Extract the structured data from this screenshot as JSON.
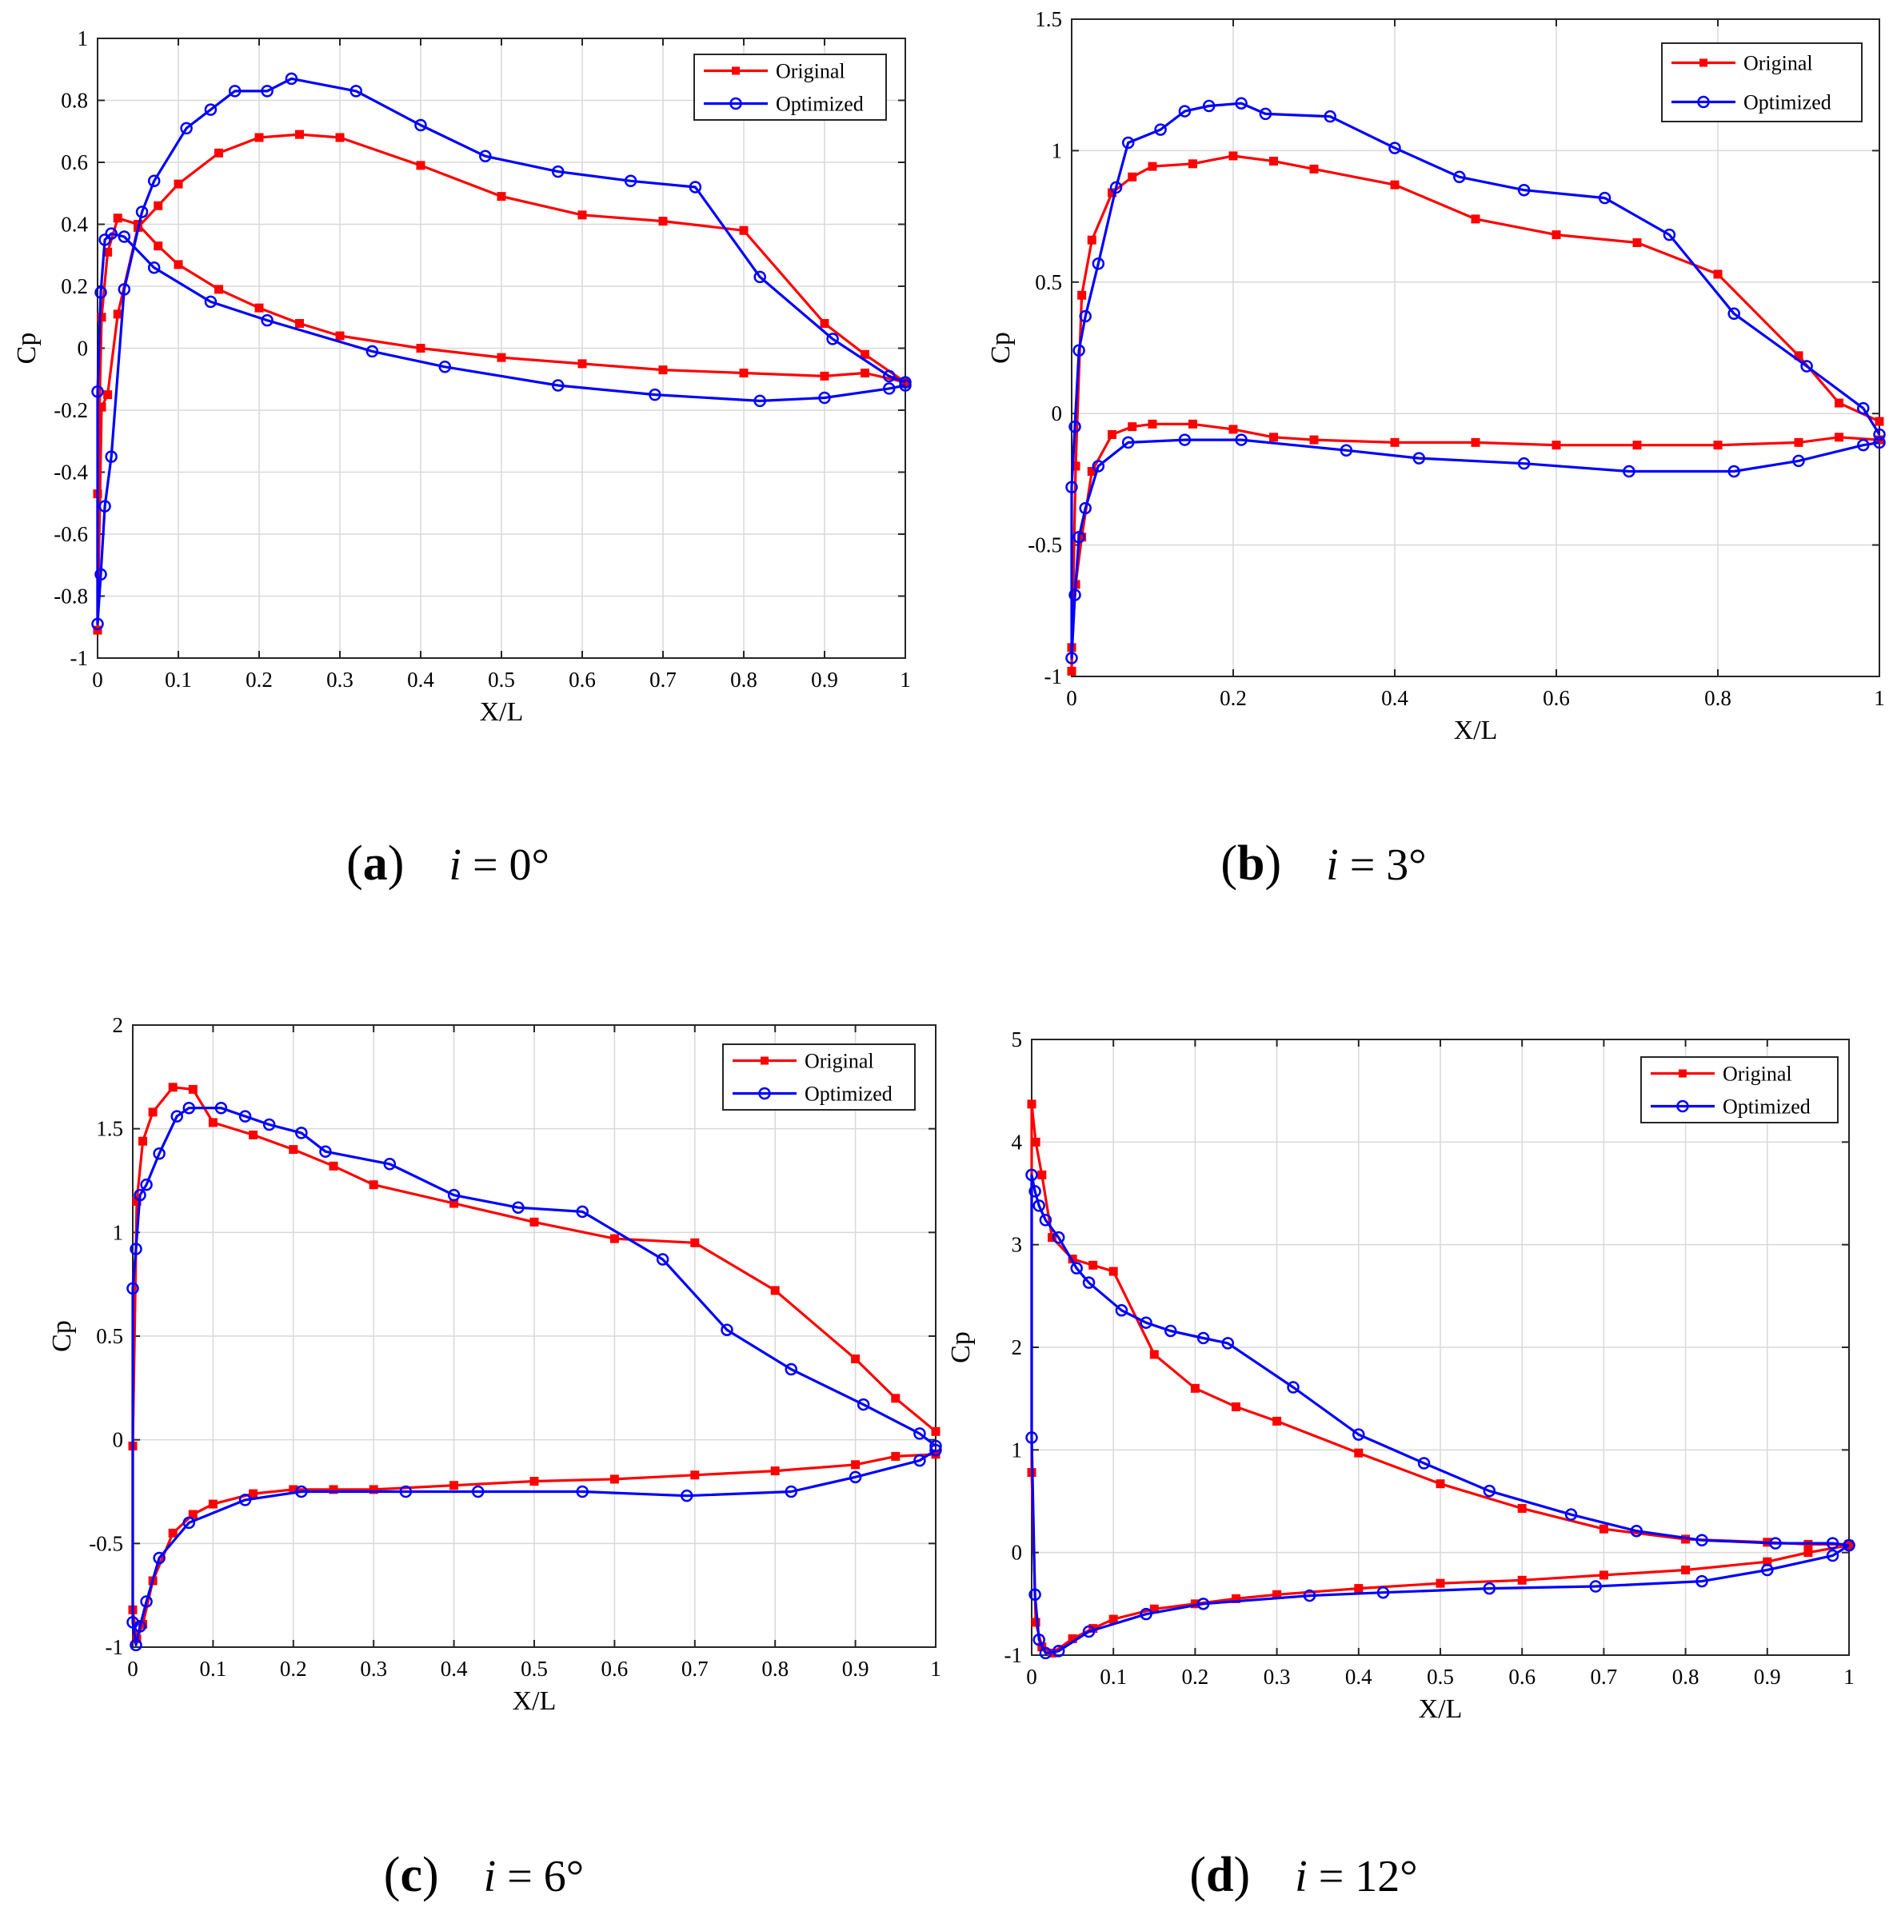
{
  "colors": {
    "original": "#ff0000",
    "optimized": "#0000ff",
    "grid": "#d9d9d9",
    "axis": "#262626"
  },
  "chart_data": [
    {
      "type": "line",
      "caption": {
        "letter": "a",
        "var": "i",
        "rest": " = 0°"
      },
      "xlabel": "X/L",
      "ylabel": "Cp",
      "xlim": [
        0,
        1
      ],
      "ylim": [
        -1,
        1
      ],
      "xticks": [
        0,
        0.1,
        0.2,
        0.3,
        0.4,
        0.5,
        0.6,
        0.7,
        0.8,
        0.9,
        1
      ],
      "xticklabels": [
        "0",
        "0.1",
        "0.2",
        "0.3",
        "0.4",
        "0.5",
        "0.6",
        "0.7",
        "0.8",
        "0.9",
        "1"
      ],
      "yticks": [
        -1,
        -0.8,
        -0.6,
        -0.4,
        -0.2,
        0,
        0.2,
        0.4,
        0.6,
        0.8,
        1
      ],
      "yticklabels": [
        "-1",
        "-0.8",
        "-0.6",
        "-0.4",
        "-0.2",
        "0",
        "0.2",
        "0.4",
        "0.6",
        "0.8",
        "1"
      ],
      "grid": true,
      "legend_position": "top-right",
      "series": [
        {
          "name": "Original",
          "marker": "square",
          "x": [
            1.0,
            0.95,
            0.9,
            0.8,
            0.7,
            0.6,
            0.5,
            0.4,
            0.3,
            0.25,
            0.2,
            0.15,
            0.1,
            0.075,
            0.05,
            0.025,
            0.0125,
            0.005,
            0.0,
            0.0,
            0.005,
            0.0125,
            0.025,
            0.05,
            0.075,
            0.1,
            0.15,
            0.2,
            0.25,
            0.3,
            0.4,
            0.5,
            0.6,
            0.7,
            0.8,
            0.9,
            0.95,
            1.0
          ],
          "y": [
            -0.11,
            -0.08,
            -0.09,
            -0.08,
            -0.07,
            -0.05,
            -0.03,
            0.0,
            0.04,
            0.08,
            0.13,
            0.19,
            0.27,
            0.33,
            0.4,
            0.42,
            0.31,
            0.1,
            -0.47,
            -0.91,
            -0.19,
            -0.15,
            0.11,
            0.39,
            0.46,
            0.53,
            0.63,
            0.68,
            0.69,
            0.68,
            0.59,
            0.49,
            0.43,
            0.41,
            0.38,
            0.08,
            -0.02,
            -0.11
          ]
        },
        {
          "name": "Optimized",
          "marker": "circle",
          "x": [
            1.0,
            0.98,
            0.9,
            0.82,
            0.69,
            0.57,
            0.43,
            0.34,
            0.21,
            0.14,
            0.07,
            0.033,
            0.017,
            0.009,
            0.004,
            0.0,
            0.0,
            0.004,
            0.009,
            0.017,
            0.033,
            0.055,
            0.07,
            0.11,
            0.14,
            0.17,
            0.21,
            0.24,
            0.32,
            0.4,
            0.48,
            0.57,
            0.66,
            0.74,
            0.82,
            0.91,
            0.98,
            1.0
          ],
          "y": [
            -0.12,
            -0.13,
            -0.16,
            -0.17,
            -0.15,
            -0.12,
            -0.06,
            -0.01,
            0.09,
            0.15,
            0.26,
            0.36,
            0.37,
            0.35,
            0.18,
            -0.14,
            -0.89,
            -0.73,
            -0.51,
            -0.35,
            0.19,
            0.44,
            0.54,
            0.71,
            0.77,
            0.83,
            0.83,
            0.87,
            0.83,
            0.72,
            0.62,
            0.57,
            0.54,
            0.52,
            0.23,
            0.03,
            -0.09,
            -0.11
          ]
        }
      ]
    },
    {
      "type": "line",
      "caption": {
        "letter": "b",
        "var": "i",
        "rest": " = 3°"
      },
      "xlabel": "X/L",
      "ylabel": "Cp",
      "xlim": [
        0,
        1
      ],
      "ylim": [
        -1,
        1.5
      ],
      "xticks": [
        0,
        0.2,
        0.4,
        0.6,
        0.8,
        1
      ],
      "xticklabels": [
        "0",
        "0.2",
        "0.4",
        "0.6",
        "0.8",
        "1"
      ],
      "yticks": [
        -1,
        -0.5,
        0,
        0.5,
        1,
        1.5
      ],
      "yticklabels": [
        "-1",
        "-0.5",
        "0",
        "0.5",
        "1",
        "1.5"
      ],
      "grid": true,
      "legend_position": "top-right",
      "series": [
        {
          "name": "Original",
          "marker": "square",
          "x": [
            1.0,
            0.95,
            0.9,
            0.8,
            0.7,
            0.6,
            0.5,
            0.4,
            0.3,
            0.25,
            0.2,
            0.15,
            0.1,
            0.075,
            0.05,
            0.025,
            0.0125,
            0.005,
            0.0,
            0.0,
            0.005,
            0.0125,
            0.025,
            0.05,
            0.075,
            0.1,
            0.15,
            0.2,
            0.25,
            0.3,
            0.4,
            0.5,
            0.6,
            0.7,
            0.8,
            0.9,
            0.95,
            1.0
          ],
          "y": [
            -0.1,
            -0.09,
            -0.11,
            -0.12,
            -0.12,
            -0.12,
            -0.11,
            -0.11,
            -0.1,
            -0.09,
            -0.06,
            -0.04,
            -0.04,
            -0.05,
            -0.08,
            -0.22,
            -0.47,
            -0.65,
            -0.89,
            -0.98,
            -0.2,
            0.45,
            0.66,
            0.84,
            0.9,
            0.94,
            0.95,
            0.98,
            0.96,
            0.93,
            0.87,
            0.74,
            0.68,
            0.65,
            0.53,
            0.22,
            0.04,
            -0.03
          ]
        },
        {
          "name": "Optimized",
          "marker": "circle",
          "x": [
            1.0,
            0.98,
            0.9,
            0.82,
            0.69,
            0.56,
            0.43,
            0.34,
            0.21,
            0.14,
            0.07,
            0.033,
            0.017,
            0.009,
            0.004,
            0.0,
            0.0,
            0.004,
            0.009,
            0.017,
            0.033,
            0.055,
            0.07,
            0.11,
            0.14,
            0.17,
            0.21,
            0.24,
            0.32,
            0.4,
            0.48,
            0.56,
            0.66,
            0.74,
            0.82,
            0.91,
            0.98,
            1.0
          ],
          "y": [
            -0.11,
            -0.12,
            -0.18,
            -0.22,
            -0.22,
            -0.19,
            -0.17,
            -0.14,
            -0.1,
            -0.1,
            -0.11,
            -0.2,
            -0.36,
            -0.47,
            -0.69,
            -0.93,
            -0.28,
            -0.05,
            0.24,
            0.37,
            0.57,
            0.86,
            1.03,
            1.08,
            1.15,
            1.17,
            1.18,
            1.14,
            1.13,
            1.01,
            0.9,
            0.85,
            0.82,
            0.68,
            0.38,
            0.18,
            0.02,
            -0.08
          ]
        }
      ]
    },
    {
      "type": "line",
      "caption": {
        "letter": "c",
        "var": "i",
        "rest": " = 6°"
      },
      "xlabel": "X/L",
      "ylabel": "Cp",
      "xlim": [
        0,
        1
      ],
      "ylim": [
        -1,
        2
      ],
      "xticks": [
        0,
        0.1,
        0.2,
        0.3,
        0.4,
        0.5,
        0.6,
        0.7,
        0.8,
        0.9,
        1
      ],
      "xticklabels": [
        "0",
        "0.1",
        "0.2",
        "0.3",
        "0.4",
        "0.5",
        "0.6",
        "0.7",
        "0.8",
        "0.9",
        "1"
      ],
      "yticks": [
        -1,
        -0.5,
        0,
        0.5,
        1,
        1.5,
        2
      ],
      "yticklabels": [
        "-1",
        "-0.5",
        "0",
        "0.5",
        "1",
        "1.5",
        "2"
      ],
      "grid": true,
      "legend_position": "top-right",
      "series": [
        {
          "name": "Original",
          "marker": "square",
          "x": [
            1.0,
            0.95,
            0.9,
            0.8,
            0.7,
            0.6,
            0.5,
            0.4,
            0.3,
            0.25,
            0.2,
            0.15,
            0.1,
            0.075,
            0.05,
            0.025,
            0.0125,
            0.005,
            0.0,
            0.0,
            0.005,
            0.0125,
            0.025,
            0.05,
            0.075,
            0.1,
            0.15,
            0.2,
            0.25,
            0.3,
            0.4,
            0.5,
            0.6,
            0.7,
            0.8,
            0.9,
            0.95,
            1.0
          ],
          "y": [
            -0.07,
            -0.08,
            -0.12,
            -0.15,
            -0.17,
            -0.19,
            -0.2,
            -0.22,
            -0.24,
            -0.24,
            -0.24,
            -0.26,
            -0.31,
            -0.36,
            -0.45,
            -0.68,
            -0.89,
            -0.96,
            -0.82,
            -0.03,
            1.15,
            1.44,
            1.58,
            1.7,
            1.69,
            1.53,
            1.47,
            1.4,
            1.32,
            1.23,
            1.14,
            1.05,
            0.97,
            0.95,
            0.72,
            0.39,
            0.2,
            0.04
          ]
        },
        {
          "name": "Optimized",
          "marker": "circle",
          "x": [
            1.0,
            0.98,
            0.9,
            0.82,
            0.69,
            0.56,
            0.43,
            0.34,
            0.21,
            0.14,
            0.07,
            0.033,
            0.017,
            0.009,
            0.004,
            0.0,
            0.0,
            0.004,
            0.009,
            0.017,
            0.033,
            0.055,
            0.07,
            0.11,
            0.14,
            0.17,
            0.21,
            0.24,
            0.32,
            0.4,
            0.48,
            0.56,
            0.66,
            0.74,
            0.82,
            0.91,
            0.98,
            1.0
          ],
          "y": [
            -0.05,
            -0.1,
            -0.18,
            -0.25,
            -0.27,
            -0.25,
            -0.25,
            -0.25,
            -0.25,
            -0.29,
            -0.4,
            -0.57,
            -0.78,
            -0.9,
            -0.99,
            -0.88,
            0.73,
            0.92,
            1.18,
            1.23,
            1.38,
            1.56,
            1.6,
            1.6,
            1.56,
            1.52,
            1.48,
            1.39,
            1.33,
            1.18,
            1.12,
            1.1,
            0.87,
            0.53,
            0.34,
            0.17,
            0.03,
            -0.03
          ]
        }
      ]
    },
    {
      "type": "line",
      "caption": {
        "letter": "d",
        "var": "i",
        "rest": " = 12°"
      },
      "xlabel": "X/L",
      "ylabel": "Cp",
      "xlim": [
        0,
        1
      ],
      "ylim": [
        -1,
        5
      ],
      "xticks": [
        0,
        0.1,
        0.2,
        0.3,
        0.4,
        0.5,
        0.6,
        0.7,
        0.8,
        0.9,
        1
      ],
      "xticklabels": [
        "0",
        "0.1",
        "0.2",
        "0.3",
        "0.4",
        "0.5",
        "0.6",
        "0.7",
        "0.8",
        "0.9",
        "1"
      ],
      "yticks": [
        -1,
        0,
        1,
        2,
        3,
        4,
        5
      ],
      "yticklabels": [
        "-1",
        "0",
        "1",
        "2",
        "3",
        "4",
        "5"
      ],
      "grid": true,
      "legend_position": "top-right",
      "series": [
        {
          "name": "Original",
          "marker": "square",
          "x": [
            1.0,
            0.95,
            0.9,
            0.8,
            0.7,
            0.6,
            0.5,
            0.4,
            0.3,
            0.25,
            0.2,
            0.15,
            0.1,
            0.075,
            0.05,
            0.025,
            0.0125,
            0.005,
            0.0,
            0.0,
            0.005,
            0.0125,
            0.025,
            0.05,
            0.075,
            0.1,
            0.15,
            0.2,
            0.25,
            0.3,
            0.4,
            0.5,
            0.6,
            0.7,
            0.8,
            0.9,
            0.95,
            1.0
          ],
          "y": [
            0.07,
            0.0,
            -0.09,
            -0.17,
            -0.22,
            -0.27,
            -0.3,
            -0.35,
            -0.41,
            -0.45,
            -0.5,
            -0.55,
            -0.65,
            -0.74,
            -0.84,
            -0.98,
            -0.92,
            -0.68,
            0.78,
            4.37,
            4.0,
            3.68,
            3.07,
            2.86,
            2.8,
            2.74,
            1.93,
            1.6,
            1.42,
            1.28,
            0.97,
            0.67,
            0.43,
            0.23,
            0.13,
            0.1,
            0.08,
            0.08
          ]
        },
        {
          "name": "Optimized",
          "marker": "circle",
          "x": [
            1.0,
            0.98,
            0.9,
            0.82,
            0.69,
            0.56,
            0.43,
            0.34,
            0.21,
            0.14,
            0.07,
            0.033,
            0.017,
            0.009,
            0.004,
            0.0,
            0.0,
            0.004,
            0.009,
            0.017,
            0.033,
            0.055,
            0.07,
            0.11,
            0.14,
            0.17,
            0.21,
            0.24,
            0.32,
            0.4,
            0.48,
            0.56,
            0.66,
            0.74,
            0.82,
            0.91,
            0.98,
            1.0
          ],
          "y": [
            0.07,
            -0.03,
            -0.17,
            -0.28,
            -0.33,
            -0.35,
            -0.39,
            -0.42,
            -0.5,
            -0.6,
            -0.77,
            -0.96,
            -0.98,
            -0.85,
            -0.41,
            1.12,
            3.68,
            3.52,
            3.38,
            3.24,
            3.07,
            2.77,
            2.63,
            2.36,
            2.24,
            2.16,
            2.09,
            2.04,
            1.61,
            1.15,
            0.87,
            0.6,
            0.37,
            0.21,
            0.12,
            0.09,
            0.09,
            0.07
          ]
        }
      ]
    }
  ]
}
